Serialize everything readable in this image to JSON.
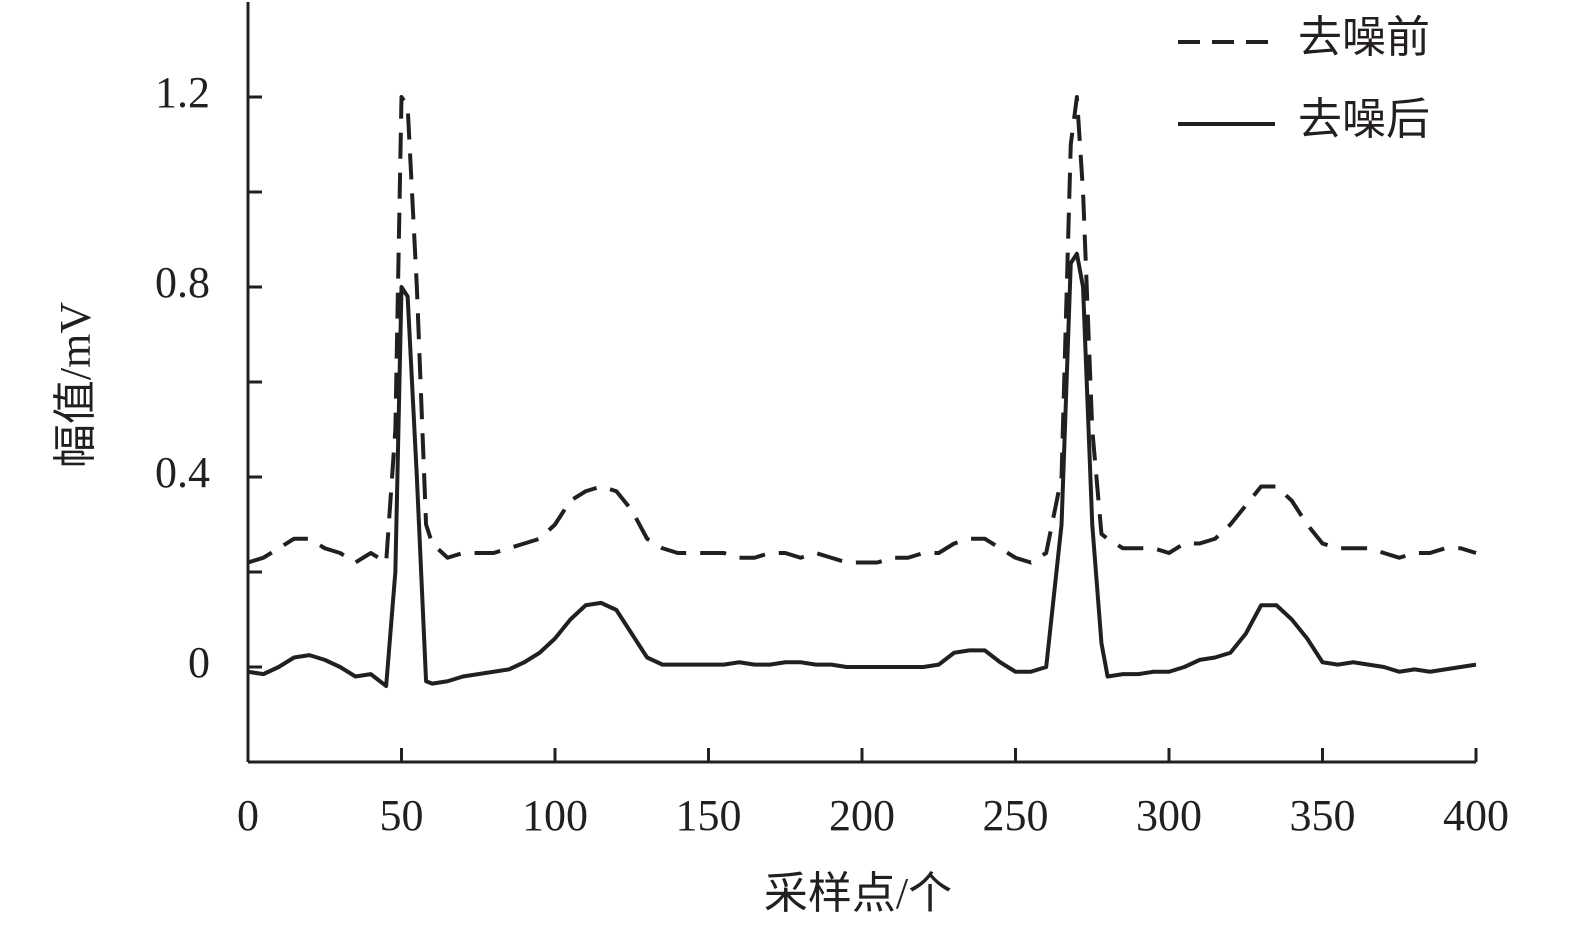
{
  "chart_data": {
    "type": "line",
    "x_label": "采样点/个",
    "y_label": "幅值/mV",
    "x": [
      0,
      5,
      10,
      15,
      20,
      25,
      30,
      35,
      40,
      45,
      48,
      50,
      52,
      55,
      58,
      60,
      65,
      70,
      75,
      80,
      85,
      90,
      95,
      100,
      105,
      110,
      115,
      120,
      125,
      130,
      135,
      140,
      145,
      150,
      155,
      160,
      165,
      170,
      175,
      180,
      185,
      190,
      195,
      200,
      205,
      210,
      215,
      220,
      225,
      230,
      235,
      240,
      245,
      250,
      255,
      260,
      265,
      268,
      270,
      272,
      275,
      278,
      280,
      285,
      290,
      295,
      300,
      305,
      310,
      315,
      320,
      325,
      330,
      335,
      340,
      345,
      350,
      355,
      360,
      365,
      370,
      375,
      380,
      385,
      390,
      395,
      400
    ],
    "series": [
      {
        "name": "去噪前",
        "color": "#231f20",
        "dash": true,
        "values": [
          0.22,
          0.23,
          0.25,
          0.27,
          0.27,
          0.25,
          0.24,
          0.22,
          0.24,
          0.22,
          0.5,
          1.2,
          1.18,
          0.8,
          0.3,
          0.26,
          0.23,
          0.24,
          0.24,
          0.24,
          0.25,
          0.26,
          0.27,
          0.3,
          0.35,
          0.37,
          0.38,
          0.37,
          0.33,
          0.27,
          0.25,
          0.24,
          0.24,
          0.24,
          0.24,
          0.23,
          0.23,
          0.24,
          0.24,
          0.23,
          0.24,
          0.23,
          0.22,
          0.22,
          0.22,
          0.23,
          0.23,
          0.24,
          0.24,
          0.26,
          0.27,
          0.27,
          0.25,
          0.23,
          0.22,
          0.24,
          0.4,
          1.1,
          1.2,
          1.0,
          0.5,
          0.28,
          0.27,
          0.25,
          0.25,
          0.25,
          0.24,
          0.26,
          0.26,
          0.27,
          0.3,
          0.34,
          0.38,
          0.38,
          0.35,
          0.3,
          0.26,
          0.25,
          0.25,
          0.25,
          0.24,
          0.23,
          0.24,
          0.24,
          0.25,
          0.25,
          0.24
        ]
      },
      {
        "name": "去噪后",
        "color": "#231f20",
        "dash": false,
        "values": [
          -0.01,
          -0.015,
          0.0,
          0.02,
          0.025,
          0.015,
          0.0,
          -0.02,
          -0.015,
          -0.04,
          0.2,
          0.8,
          0.78,
          0.4,
          -0.03,
          -0.035,
          -0.03,
          -0.02,
          -0.015,
          -0.01,
          -0.005,
          0.01,
          0.03,
          0.06,
          0.1,
          0.13,
          0.135,
          0.12,
          0.07,
          0.02,
          0.005,
          0.005,
          0.005,
          0.005,
          0.005,
          0.01,
          0.005,
          0.005,
          0.01,
          0.01,
          0.005,
          0.005,
          0.0,
          0.0,
          0.0,
          0.0,
          0.0,
          0.0,
          0.005,
          0.03,
          0.035,
          0.035,
          0.01,
          -0.01,
          -0.01,
          0.0,
          0.3,
          0.85,
          0.87,
          0.8,
          0.3,
          0.05,
          -0.02,
          -0.015,
          -0.015,
          -0.01,
          -0.01,
          0.0,
          0.015,
          0.02,
          0.03,
          0.07,
          0.13,
          0.13,
          0.1,
          0.06,
          0.01,
          0.005,
          0.01,
          0.005,
          0.0,
          -0.01,
          -0.005,
          -0.01,
          -0.005,
          0.0,
          0.005
        ]
      }
    ],
    "xlim": [
      0,
      400
    ],
    "xticks": [
      0,
      50,
      100,
      150,
      200,
      250,
      300,
      350,
      400
    ],
    "ylim": [
      -0.2,
      1.4
    ],
    "yticks": [
      0,
      0.4,
      0.8,
      1.2
    ],
    "yminor_ticks": [
      0.2,
      0.6,
      1.0
    ],
    "legend": "upper-right",
    "grid": false
  }
}
